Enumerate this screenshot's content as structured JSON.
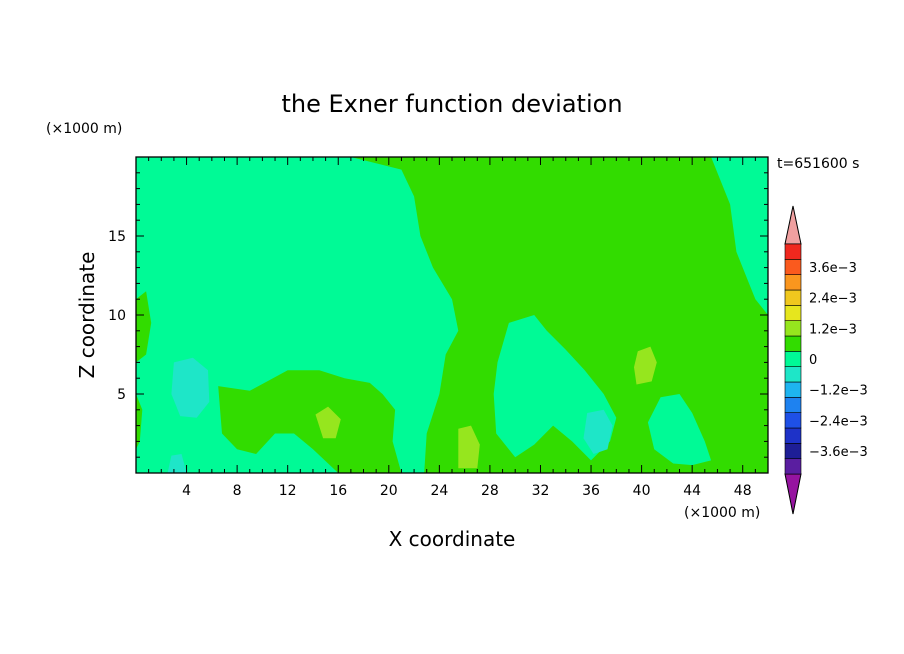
{
  "chart_data": {
    "type": "heatmap",
    "title": "the Exner function deviation",
    "xlabel": "X coordinate",
    "ylabel": "Z coordinate",
    "x_unit": "(×1000 m)",
    "y_unit": "(×1000 m)",
    "time_label": "t=651600 s",
    "xlim": [
      0,
      50
    ],
    "ylim": [
      0,
      20
    ],
    "x_ticks": [
      4,
      8,
      12,
      16,
      20,
      24,
      28,
      32,
      36,
      40,
      44,
      48
    ],
    "y_ticks": [
      5,
      10,
      15
    ],
    "colorbar": {
      "levels": [
        -0.0042,
        -0.0036,
        -0.003,
        -0.0024,
        -0.0018,
        -0.0012,
        -0.0006,
        0,
        0.0006,
        0.0012,
        0.0018,
        0.0024,
        0.003,
        0.0036,
        0.0042
      ],
      "colors": [
        "#5a1ea0",
        "#1e1e96",
        "#1e32c8",
        "#1e50e6",
        "#1e82f0",
        "#1eb4f0",
        "#1ee6c8",
        "#00fa96",
        "#32dc00",
        "#96e61e",
        "#e6e61e",
        "#f0c81e",
        "#fa961e",
        "#fa5a1e",
        "#f0281e"
      ],
      "under_color": "#9614a0",
      "over_color": "#f0a0a0",
      "labels": [
        "3.6e−3",
        "2.4e−3",
        "1.2e−3",
        "0",
        "−1.2e−3",
        "−2.4e−3",
        "−3.6e−3"
      ]
    },
    "regions": [
      {
        "value": 0.0003,
        "level_index": 8,
        "polygon": [
          [
            0,
            20
          ],
          [
            17,
            20
          ],
          [
            21,
            19.2
          ],
          [
            22,
            17.5
          ],
          [
            22.5,
            15
          ],
          [
            23.5,
            13
          ],
          [
            25,
            11
          ],
          [
            25.5,
            9
          ],
          [
            24.5,
            7.5
          ],
          [
            24,
            5
          ],
          [
            23,
            2.5
          ],
          [
            22.8,
            0
          ],
          [
            50,
            0
          ],
          [
            50,
            10
          ],
          [
            49,
            11
          ],
          [
            48.5,
            12
          ],
          [
            47.5,
            14
          ],
          [
            47,
            17
          ],
          [
            46,
            19
          ],
          [
            45.5,
            20
          ]
        ]
      },
      {
        "value": 0.0003,
        "level_index": 8,
        "polygon": [
          [
            0,
            11
          ],
          [
            0.8,
            11.5
          ],
          [
            1.2,
            9.5
          ],
          [
            0.8,
            7.5
          ],
          [
            0,
            7
          ]
        ]
      },
      {
        "value": 0.0003,
        "level_index": 8,
        "polygon": [
          [
            0,
            5
          ],
          [
            0.5,
            4
          ],
          [
            0.3,
            2
          ],
          [
            0,
            1.5
          ]
        ]
      },
      {
        "value": 0.0003,
        "level_index": 8,
        "polygon": [
          [
            6.5,
            5.5
          ],
          [
            9,
            5.2
          ],
          [
            12,
            6.5
          ],
          [
            14.5,
            6.5
          ],
          [
            16.5,
            6
          ],
          [
            18.5,
            5.7
          ],
          [
            19.5,
            5
          ],
          [
            20.5,
            4
          ],
          [
            20.3,
            2
          ],
          [
            21,
            0
          ],
          [
            16,
            0
          ],
          [
            14,
            1.5
          ],
          [
            12.5,
            2.5
          ],
          [
            11,
            2.5
          ],
          [
            9.5,
            1.2
          ],
          [
            8,
            1.5
          ],
          [
            6.8,
            2.5
          ]
        ]
      },
      {
        "value": -0.0003,
        "level_index": 7,
        "polygon": [
          [
            29.5,
            9.5
          ],
          [
            31.5,
            10
          ],
          [
            32.5,
            9
          ],
          [
            34,
            7.8
          ],
          [
            35.5,
            6.5
          ],
          [
            37,
            5
          ],
          [
            38,
            3.5
          ],
          [
            37.5,
            2
          ],
          [
            36,
            0.8
          ],
          [
            34.5,
            2
          ],
          [
            33,
            3
          ],
          [
            31.5,
            1.8
          ],
          [
            30,
            1
          ],
          [
            28.5,
            2.5
          ],
          [
            28.3,
            5
          ],
          [
            28.6,
            7
          ]
        ]
      },
      {
        "value": -0.0003,
        "level_index": 7,
        "polygon": [
          [
            41.5,
            4.8
          ],
          [
            43,
            5
          ],
          [
            44,
            3.8
          ],
          [
            45,
            2
          ],
          [
            45.5,
            0.8
          ],
          [
            44,
            0.5
          ],
          [
            42.5,
            0.6
          ],
          [
            41,
            1.5
          ],
          [
            40.5,
            3.2
          ]
        ]
      },
      {
        "value": -0.0007,
        "level_index": 6,
        "polygon": [
          [
            3,
            7
          ],
          [
            4.5,
            7.3
          ],
          [
            5.7,
            6.5
          ],
          [
            5.8,
            4.5
          ],
          [
            4.8,
            3.5
          ],
          [
            3.5,
            3.6
          ],
          [
            2.8,
            5
          ]
        ]
      },
      {
        "value": -0.0007,
        "level_index": 6,
        "polygon": [
          [
            35.7,
            3.8
          ],
          [
            37,
            4
          ],
          [
            37.7,
            3
          ],
          [
            37.3,
            1.5
          ],
          [
            36.2,
            1.2
          ],
          [
            35.4,
            2.2
          ]
        ]
      },
      {
        "value": -0.0007,
        "level_index": 6,
        "polygon": [
          [
            2.5,
            0
          ],
          [
            4,
            0
          ],
          [
            3.6,
            1.2
          ],
          [
            2.8,
            1.1
          ]
        ]
      },
      {
        "value": 0.0009,
        "level_index": 9,
        "polygon": [
          [
            14.2,
            3.7
          ],
          [
            15.2,
            4.2
          ],
          [
            16.2,
            3.4
          ],
          [
            15.8,
            2.2
          ],
          [
            14.8,
            2.2
          ]
        ]
      },
      {
        "value": 0.0009,
        "level_index": 9,
        "polygon": [
          [
            25.5,
            2.8
          ],
          [
            26.5,
            3
          ],
          [
            27.2,
            1.8
          ],
          [
            27,
            0.3
          ],
          [
            25.5,
            0.3
          ]
        ]
      },
      {
        "value": 0.0009,
        "level_index": 9,
        "polygon": [
          [
            39.7,
            7.7
          ],
          [
            40.7,
            8
          ],
          [
            41.2,
            7
          ],
          [
            40.8,
            5.8
          ],
          [
            39.6,
            5.6
          ],
          [
            39.4,
            6.7
          ]
        ]
      }
    ]
  }
}
